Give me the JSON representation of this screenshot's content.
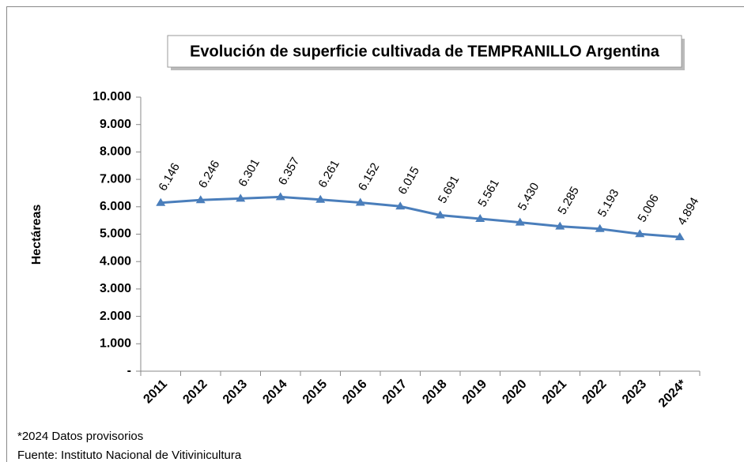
{
  "chart_data": {
    "type": "line",
    "title": "Evolución de superficie cultivada de TEMPRANILLO  Argentina",
    "y_label": "Hectáreas",
    "categories": [
      "2011",
      "2012",
      "2013",
      "2014",
      "2015",
      "2016",
      "2017",
      "2018",
      "2019",
      "2020",
      "2021",
      "2022",
      "2023",
      "2024*"
    ],
    "series": [
      {
        "name": "Tempranillo",
        "color": "#4a7ebb",
        "values": [
          6146,
          6246,
          6301,
          6357,
          6261,
          6152,
          6015,
          5691,
          5561,
          5430,
          5285,
          5193,
          5006,
          4894
        ],
        "value_labels": [
          "6.146",
          "6.246",
          "6.301",
          "6.357",
          "6.261",
          "6.152",
          "6.015",
          "5.691",
          "5.561",
          "5.430",
          "5.285",
          "5.193",
          "5.006",
          "4.894"
        ]
      }
    ],
    "ylim": [
      0,
      10000
    ],
    "yticks": [
      {
        "value": 0,
        "label": "-"
      },
      {
        "value": 1000,
        "label": "1.000"
      },
      {
        "value": 2000,
        "label": "2.000"
      },
      {
        "value": 3000,
        "label": "3.000"
      },
      {
        "value": 4000,
        "label": "4.000"
      },
      {
        "value": 5000,
        "label": "5.000"
      },
      {
        "value": 6000,
        "label": "6.000"
      },
      {
        "value": 7000,
        "label": "7.000"
      },
      {
        "value": 8000,
        "label": "8.000"
      },
      {
        "value": 9000,
        "label": "9.000"
      },
      {
        "value": 10000,
        "label": "10.000"
      }
    ],
    "grid": false,
    "footnotes": [
      "*2024 Datos provisorios",
      "Fuente:  Instituto Nacional de Vitivinicultura"
    ]
  }
}
